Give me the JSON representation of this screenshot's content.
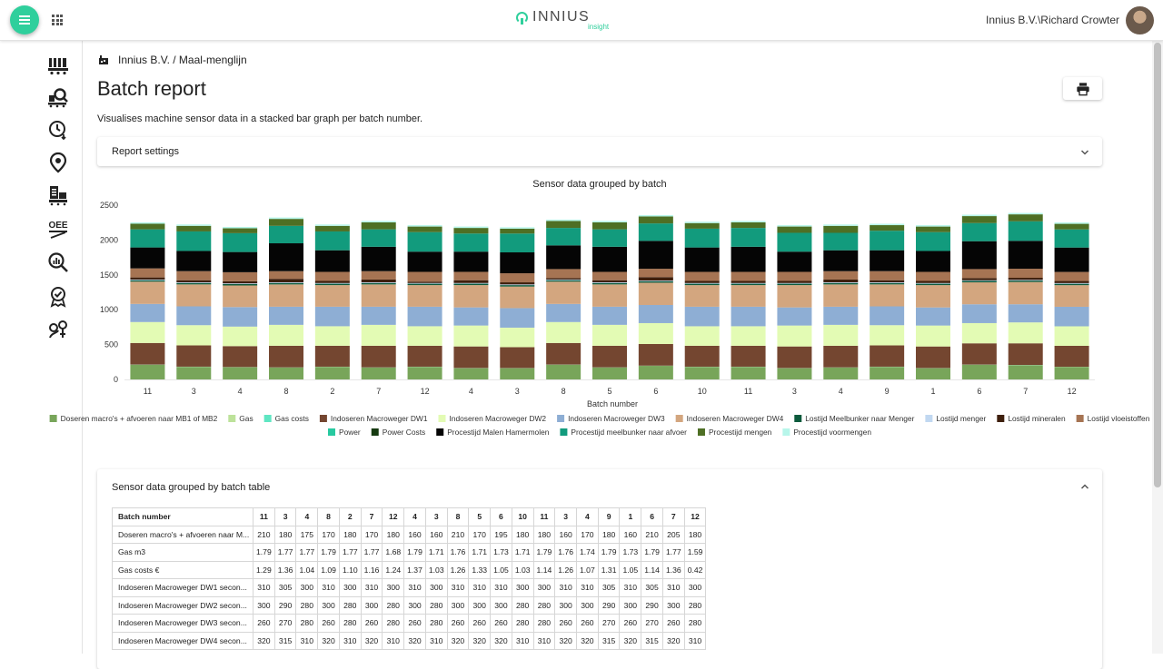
{
  "header": {
    "logo_text": "INNIUS",
    "logo_sub": "insight",
    "user": "Innius B.V.\\Richard Crowter"
  },
  "sidebar": {
    "items": [
      {
        "icon": "machines-icon"
      },
      {
        "icon": "machine-search-icon"
      },
      {
        "icon": "clock-history-icon"
      },
      {
        "icon": "location-pin-icon"
      },
      {
        "icon": "reports-icon"
      },
      {
        "icon": "oee-icon",
        "label": "OEE"
      },
      {
        "icon": "analytics-search-icon"
      },
      {
        "icon": "quality-badge-icon"
      },
      {
        "icon": "people-icon"
      }
    ]
  },
  "breadcrumb": "Innius B.V. / Maal-menglijn",
  "page": {
    "title": "Batch report",
    "description": "Visualises machine sensor data in a stacked bar graph per batch number."
  },
  "settings_panel": {
    "label": "Report settings"
  },
  "chart_data": {
    "type": "bar",
    "stacked": true,
    "title": "Sensor data grouped by batch",
    "xlabel": "Batch number",
    "ylabel": "",
    "ylim": [
      0,
      2500
    ],
    "yticks": [
      0,
      500,
      1000,
      1500,
      2000,
      2500
    ],
    "grid": false,
    "legend_position": "bottom",
    "categories": [
      "11",
      "3",
      "4",
      "8",
      "2",
      "7",
      "12",
      "4",
      "3",
      "8",
      "5",
      "6",
      "10",
      "11",
      "3",
      "4",
      "9",
      "1",
      "6",
      "7",
      "12"
    ],
    "series": [
      {
        "name": "Doseren macro's + afvoeren naar MB1 of MB2",
        "color": "#78a55a",
        "values": [
          210,
          180,
          175,
          170,
          180,
          170,
          180,
          160,
          160,
          210,
          170,
          195,
          180,
          180,
          160,
          170,
          180,
          160,
          210,
          205,
          180
        ]
      },
      {
        "name": "Gas",
        "color": "#bde29a",
        "values": [
          1.79,
          1.77,
          1.77,
          1.79,
          1.77,
          1.77,
          1.68,
          1.79,
          1.71,
          1.76,
          1.71,
          1.73,
          1.71,
          1.79,
          1.76,
          1.74,
          1.79,
          1.73,
          1.79,
          1.77,
          1.59
        ]
      },
      {
        "name": "Gas costs",
        "color": "#5fe6c2",
        "values": [
          1.29,
          1.36,
          1.04,
          1.09,
          1.1,
          1.16,
          1.24,
          1.37,
          1.03,
          1.26,
          1.33,
          1.05,
          1.03,
          1.14,
          1.26,
          1.07,
          1.31,
          1.05,
          1.14,
          1.36,
          0.42
        ]
      },
      {
        "name": "Indoseren Macroweger DW1",
        "color": "#744630",
        "values": [
          310,
          305,
          300,
          310,
          300,
          310,
          300,
          310,
          300,
          310,
          310,
          310,
          300,
          300,
          310,
          310,
          305,
          310,
          305,
          310,
          300
        ]
      },
      {
        "name": "Indoseren Macroweger DW2",
        "color": "#e3fbb4",
        "values": [
          300,
          290,
          280,
          300,
          280,
          300,
          280,
          300,
          280,
          300,
          300,
          300,
          280,
          280,
          300,
          300,
          290,
          300,
          290,
          300,
          280
        ]
      },
      {
        "name": "Indoseren Macroweger DW3",
        "color": "#8eaed4",
        "values": [
          260,
          270,
          280,
          260,
          280,
          260,
          280,
          260,
          280,
          260,
          260,
          260,
          280,
          280,
          260,
          260,
          270,
          260,
          270,
          260,
          280
        ]
      },
      {
        "name": "Indoseren Macroweger DW4",
        "color": "#d3a67f",
        "values": [
          320,
          315,
          310,
          320,
          310,
          320,
          310,
          320,
          310,
          320,
          320,
          320,
          310,
          310,
          320,
          320,
          315,
          320,
          315,
          320,
          310
        ]
      },
      {
        "name": "Lostijd Meelbunker naar Menger",
        "color": "#0c5a3c",
        "values": [
          20,
          20,
          20,
          20,
          20,
          20,
          20,
          20,
          20,
          20,
          20,
          20,
          20,
          20,
          20,
          20,
          20,
          20,
          20,
          20,
          20
        ]
      },
      {
        "name": "Lostijd menger",
        "color": "#c1d8f1",
        "values": [
          10,
          10,
          10,
          10,
          10,
          10,
          10,
          10,
          10,
          10,
          10,
          10,
          10,
          10,
          10,
          10,
          10,
          10,
          10,
          10,
          10
        ]
      },
      {
        "name": "Lostijd mineralen",
        "color": "#3e1f0d",
        "values": [
          30,
          30,
          30,
          50,
          30,
          40,
          20,
          40,
          30,
          20,
          30,
          50,
          30,
          30,
          30,
          40,
          30,
          30,
          30,
          30,
          30
        ]
      },
      {
        "name": "Lostijd vloeistoffen",
        "color": "#a67453",
        "values": [
          130,
          130,
          130,
          110,
          130,
          120,
          140,
          120,
          130,
          130,
          120,
          120,
          130,
          130,
          130,
          120,
          130,
          130,
          130,
          130,
          130
        ]
      },
      {
        "name": "Power",
        "color": "#27c9a0",
        "values": [
          0,
          0,
          0,
          0,
          0,
          0,
          0,
          0,
          0,
          0,
          0,
          0,
          0,
          0,
          0,
          0,
          0,
          0,
          0,
          0,
          0
        ]
      },
      {
        "name": "Power Costs",
        "color": "#163a10",
        "values": [
          0,
          0,
          0,
          0,
          0,
          0,
          0,
          0,
          0,
          0,
          0,
          0,
          0,
          0,
          0,
          0,
          0,
          0,
          0,
          0,
          0
        ]
      },
      {
        "name": "Procestijd Malen Hamermolen",
        "color": "#050505",
        "values": [
          300,
          290,
          290,
          400,
          310,
          350,
          290,
          290,
          300,
          340,
          360,
          400,
          350,
          360,
          290,
          300,
          300,
          300,
          400,
          400,
          350
        ]
      },
      {
        "name": "Procestijd meelbunker naar afvoer",
        "color": "#129b7d",
        "values": [
          260,
          280,
          270,
          250,
          270,
          250,
          280,
          260,
          270,
          250,
          250,
          250,
          270,
          270,
          270,
          250,
          280,
          270,
          260,
          280,
          260
        ]
      },
      {
        "name": "Procestijd mengen",
        "color": "#4e6f24",
        "values": [
          80,
          80,
          70,
          100,
          80,
          100,
          80,
          80,
          70,
          100,
          100,
          100,
          80,
          80,
          90,
          100,
          80,
          80,
          100,
          100,
          80
        ]
      },
      {
        "name": "Procestijd voormengen",
        "color": "#b7f6ea",
        "values": [
          20,
          20,
          20,
          20,
          20,
          20,
          20,
          20,
          20,
          20,
          20,
          20,
          20,
          20,
          20,
          20,
          20,
          20,
          20,
          20,
          20
        ]
      }
    ]
  },
  "table_panel": {
    "label": "Sensor data grouped by batch table",
    "header": "Batch number",
    "columns": [
      "11",
      "3",
      "4",
      "8",
      "2",
      "7",
      "12",
      "4",
      "3",
      "8",
      "5",
      "6",
      "10",
      "11",
      "3",
      "4",
      "9",
      "1",
      "6",
      "7",
      "12"
    ],
    "rows": [
      {
        "label": "Doseren macro's + afvoeren naar M...",
        "values": [
          "210",
          "180",
          "175",
          "170",
          "180",
          "170",
          "180",
          "160",
          "160",
          "210",
          "170",
          "195",
          "180",
          "180",
          "160",
          "170",
          "180",
          "160",
          "210",
          "205",
          "180"
        ]
      },
      {
        "label": "Gas m3",
        "values": [
          "1.79",
          "1.77",
          "1.77",
          "1.79",
          "1.77",
          "1.77",
          "1.68",
          "1.79",
          "1.71",
          "1.76",
          "1.71",
          "1.73",
          "1.71",
          "1.79",
          "1.76",
          "1.74",
          "1.79",
          "1.73",
          "1.79",
          "1.77",
          "1.59"
        ]
      },
      {
        "label": "Gas costs €",
        "values": [
          "1.29",
          "1.36",
          "1.04",
          "1.09",
          "1.10",
          "1.16",
          "1.24",
          "1.37",
          "1.03",
          "1.26",
          "1.33",
          "1.05",
          "1.03",
          "1.14",
          "1.26",
          "1.07",
          "1.31",
          "1.05",
          "1.14",
          "1.36",
          "0.42"
        ]
      },
      {
        "label": "Indoseren Macroweger DW1 secon...",
        "values": [
          "310",
          "305",
          "300",
          "310",
          "300",
          "310",
          "300",
          "310",
          "300",
          "310",
          "310",
          "310",
          "300",
          "300",
          "310",
          "310",
          "305",
          "310",
          "305",
          "310",
          "300"
        ]
      },
      {
        "label": "Indoseren Macroweger DW2 secon...",
        "values": [
          "300",
          "290",
          "280",
          "300",
          "280",
          "300",
          "280",
          "300",
          "280",
          "300",
          "300",
          "300",
          "280",
          "280",
          "300",
          "300",
          "290",
          "300",
          "290",
          "300",
          "280"
        ]
      },
      {
        "label": "Indoseren Macroweger DW3 secon...",
        "values": [
          "260",
          "270",
          "280",
          "260",
          "280",
          "260",
          "280",
          "260",
          "280",
          "260",
          "260",
          "260",
          "280",
          "280",
          "260",
          "260",
          "270",
          "260",
          "270",
          "260",
          "280"
        ]
      },
      {
        "label": "Indoseren Macroweger DW4 secon...",
        "values": [
          "320",
          "315",
          "310",
          "320",
          "310",
          "320",
          "310",
          "320",
          "310",
          "320",
          "320",
          "320",
          "310",
          "310",
          "320",
          "320",
          "315",
          "320",
          "315",
          "320",
          "310"
        ]
      }
    ]
  }
}
